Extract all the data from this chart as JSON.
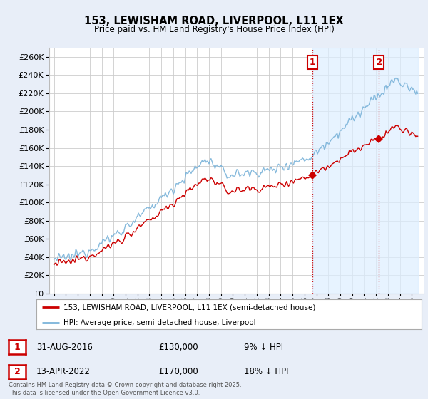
{
  "title": "153, LEWISHAM ROAD, LIVERPOOL, L11 1EX",
  "subtitle": "Price paid vs. HM Land Registry's House Price Index (HPI)",
  "ylim": [
    0,
    270000
  ],
  "yticks": [
    0,
    20000,
    40000,
    60000,
    80000,
    100000,
    120000,
    140000,
    160000,
    180000,
    200000,
    220000,
    240000,
    260000
  ],
  "hpi_color": "#7ab3d9",
  "price_color": "#cc0000",
  "shade_color": "#ddeeff",
  "sale1_year": 2016.667,
  "sale2_year": 2022.25,
  "sale1_price": 130000,
  "sale2_price": 170000,
  "sale1_date": "31-AUG-2016",
  "sale1_price_str": "£130,000",
  "sale1_hpi": "9% ↓ HPI",
  "sale2_date": "13-APR-2022",
  "sale2_price_str": "£170,000",
  "sale2_hpi": "18% ↓ HPI",
  "legend_line1": "153, LEWISHAM ROAD, LIVERPOOL, L11 1EX (semi-detached house)",
  "legend_line2": "HPI: Average price, semi-detached house, Liverpool",
  "footnote": "Contains HM Land Registry data © Crown copyright and database right 2025.\nThis data is licensed under the Open Government Licence v3.0.",
  "bg_color": "#e8eef8",
  "plot_bg_color": "#ffffff",
  "grid_color": "#cccccc",
  "xstart": 1995.0,
  "xend": 2025.5
}
